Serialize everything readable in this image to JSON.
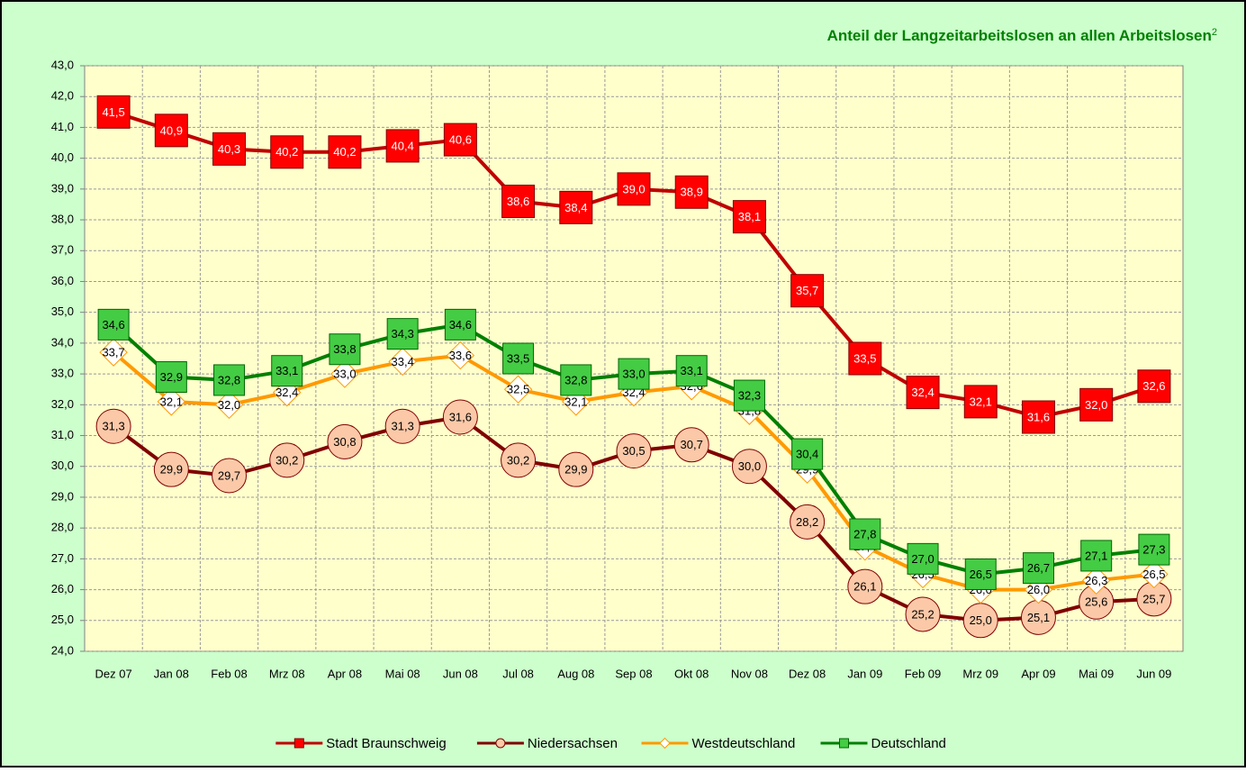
{
  "chart_data": {
    "type": "line",
    "title": "Anteil der Langzeitarbeitslosen an allen Arbeitslosen",
    "title_superscript": "2",
    "categories": [
      "Dez 07",
      "Jan 08",
      "Feb 08",
      "Mrz 08",
      "Apr 08",
      "Mai 08",
      "Jun 08",
      "Jul 08",
      "Aug 08",
      "Sep 08",
      "Okt 08",
      "Nov 08",
      "Dez 08",
      "Jan 09",
      "Feb 09",
      "Mrz 09",
      "Apr 09",
      "Mai 09",
      "Jun 09"
    ],
    "ylim": [
      24,
      43
    ],
    "yticks": [
      {
        "value": 24,
        "label": "24,0"
      },
      {
        "value": 25,
        "label": "25,0"
      },
      {
        "value": 26,
        "label": "26,0"
      },
      {
        "value": 27,
        "label": "27,0"
      },
      {
        "value": 28,
        "label": "28,0"
      },
      {
        "value": 29,
        "label": "29,0"
      },
      {
        "value": 30,
        "label": "30,0"
      },
      {
        "value": 31,
        "label": "31,0"
      },
      {
        "value": 32,
        "label": "32,0"
      },
      {
        "value": 33,
        "label": "33,0"
      },
      {
        "value": 34,
        "label": "34,0"
      },
      {
        "value": 35,
        "label": "35,0"
      },
      {
        "value": 36,
        "label": "36,0"
      },
      {
        "value": 37,
        "label": "37,0"
      },
      {
        "value": 38,
        "label": "38,0"
      },
      {
        "value": 39,
        "label": "39,0"
      },
      {
        "value": 40,
        "label": "40,0"
      },
      {
        "value": 41,
        "label": "41,0"
      },
      {
        "value": 42,
        "label": "42,0"
      },
      {
        "value": 43,
        "label": "43,0"
      }
    ],
    "grid": true,
    "legend": "bottom",
    "series": [
      {
        "name": "Stadt Braunschweig",
        "color": "#c00000",
        "marker": "square",
        "values": [
          41.5,
          40.9,
          40.3,
          40.2,
          40.2,
          40.4,
          40.6,
          38.6,
          38.4,
          39.0,
          38.9,
          38.1,
          35.7,
          33.5,
          32.4,
          32.1,
          31.6,
          32.0,
          32.6
        ],
        "value_labels": [
          "41,5",
          "40,9",
          "40,3",
          "40,2",
          "40,2",
          "40,4",
          "40,6",
          "38,6",
          "38,4",
          "39,0",
          "38,9",
          "38,1",
          "35,7",
          "33,5",
          "32,4",
          "32,1",
          "31,6",
          "32,0",
          "32,6"
        ]
      },
      {
        "name": "Niedersachsen",
        "color": "#800000",
        "marker": "circle",
        "values": [
          31.3,
          29.9,
          29.7,
          30.2,
          30.8,
          31.3,
          31.6,
          30.2,
          29.9,
          30.5,
          30.7,
          30.0,
          28.2,
          26.1,
          25.2,
          25.0,
          25.1,
          25.6,
          25.7
        ],
        "value_labels": [
          "31,3",
          "29,9",
          "29,7",
          "30,2",
          "30,8",
          "31,3",
          "31,6",
          "30,2",
          "29,9",
          "30,5",
          "30,7",
          "30,0",
          "28,2",
          "26,1",
          "25,2",
          "25,0",
          "25,1",
          "25,6",
          "25,7"
        ]
      },
      {
        "name": "Westdeutschland",
        "color": "#ff9900",
        "marker": "diamond",
        "values": [
          33.7,
          32.1,
          32.0,
          32.4,
          33.0,
          33.4,
          33.6,
          32.5,
          32.1,
          32.4,
          32.6,
          31.8,
          29.9,
          27.4,
          26.5,
          26.0,
          26.0,
          26.3,
          26.5
        ],
        "value_labels": [
          "33,7",
          "32,1",
          "32,0",
          "32,4",
          "33,0",
          "33,4",
          "33,6",
          "32,5",
          "32,1",
          "32,4",
          "32,6",
          "31,8",
          "29,9",
          "27,4",
          "26,5",
          "26,0",
          "26,0",
          "26,3",
          "26,5"
        ]
      },
      {
        "name": "Deutschland",
        "color": "#008000",
        "marker": "square-green",
        "values": [
          34.6,
          32.9,
          32.8,
          33.1,
          33.8,
          34.3,
          34.6,
          33.5,
          32.8,
          33.0,
          33.1,
          32.3,
          30.4,
          27.8,
          27.0,
          26.5,
          26.7,
          27.1,
          27.3
        ],
        "value_labels": [
          "34,6",
          "32,9",
          "32,8",
          "33,1",
          "33,8",
          "34,3",
          "34,6",
          "33,5",
          "32,8",
          "33,0",
          "33,1",
          "32,3",
          "30,4",
          "27,8",
          "27,0",
          "26,5",
          "26,7",
          "27,1",
          "27,3"
        ]
      }
    ]
  }
}
